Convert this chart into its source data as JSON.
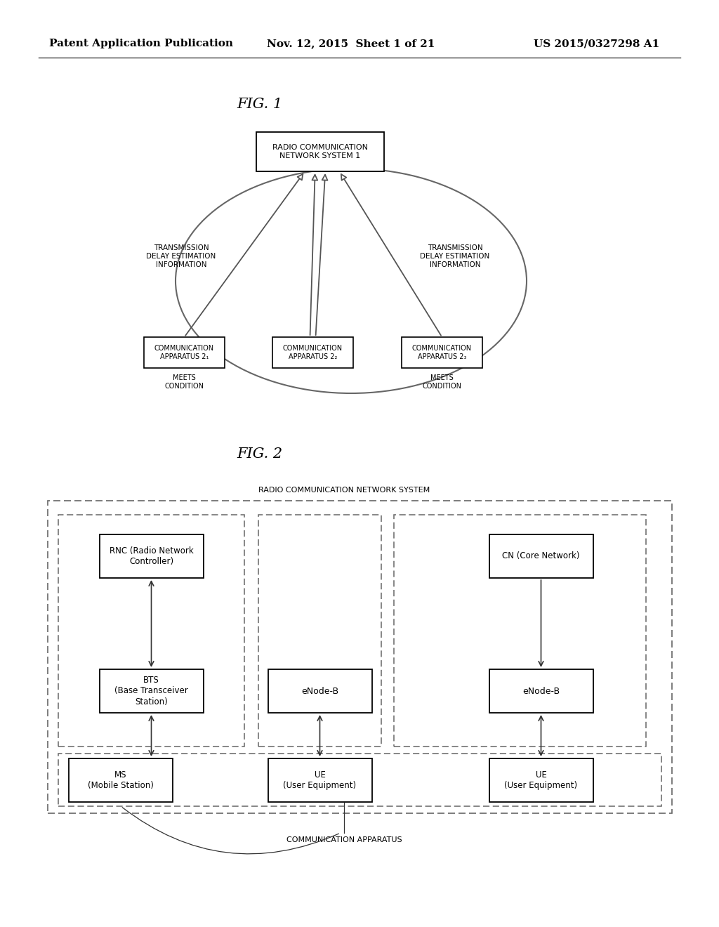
{
  "bg_color": "#ffffff",
  "header_left": "Patent Application Publication",
  "header_mid": "Nov. 12, 2015  Sheet 1 of 21",
  "header_right": "US 2015/0327298 A1",
  "fig1_label": "FIG. 1",
  "fig2_label": "FIG. 2",
  "rcns_label": "RADIO COMMUNICATION\nNETWORK SYSTEM 1",
  "tdei_left": "TRANSMISSION\nDELAY ESTIMATION\nINFORMATION",
  "tdei_right": "TRANSMISSION\nDELAY ESTIMATION\nINFORMATION",
  "comm_app_1": "COMMUNICATION\nAPPARATUS 2₁",
  "comm_app_2": "COMMUNICATION\nAPPARATUS 2₂",
  "comm_app_3": "COMMUNICATION\nAPPARATUS 2₃",
  "meets_cond_left": "MEETS\nCONDITION",
  "meets_cond_right": "MEETS\nCONDITION",
  "fig2_system_label": "RADIO COMMUNICATION NETWORK SYSTEM",
  "rnc_label": "RNC (Radio Network\nController)",
  "bts_label": "BTS\n(Base Transceiver\nStation)",
  "cn_label": "CN (Core Network)",
  "enode_b_mid": "eNode-B",
  "enode_b_right": "eNode-B",
  "ms_label": "MS\n(Mobile Station)",
  "ue_mid_label": "UE\n(User Equipment)",
  "ue_right_label": "UE\n(User Equipment)",
  "comm_apparatus_label": "COMMUNICATION APPARATUS"
}
